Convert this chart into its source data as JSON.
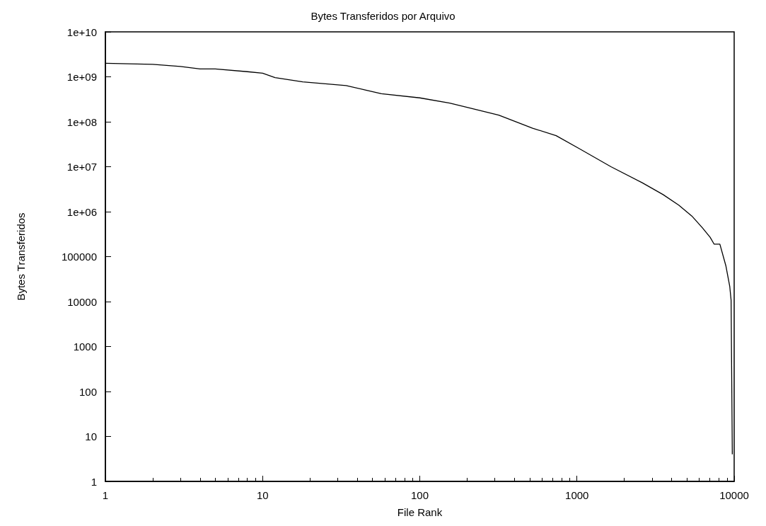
{
  "chart_data": {
    "type": "line",
    "title": "Bytes Transferidos por Arquivo",
    "xlabel": "File Rank",
    "ylabel": "Bytes Transferidos",
    "log": "xy",
    "grid": false,
    "marker": "none",
    "line_style": "solid",
    "xlim": [
      1,
      10000
    ],
    "xticks": [
      1,
      10,
      100,
      1000,
      10000
    ],
    "ylim": [
      1,
      10000000000
    ],
    "yticks": [
      1,
      10,
      100,
      1000,
      10000,
      100000,
      {
        "value": 1000000,
        "label": "1e+06"
      },
      {
        "value": 10000000,
        "label": "1e+07"
      },
      {
        "value": 100000000,
        "label": "1e+08"
      },
      {
        "value": 1000000000,
        "label": "1e+09"
      },
      {
        "value": 10000000000,
        "label": "1e+10"
      }
    ],
    "series": [
      {
        "color": "#000000",
        "x": [
          1,
          2,
          3,
          4,
          5,
          8,
          10,
          12,
          18,
          34,
          45,
          57,
          100,
          155,
          200,
          318,
          522,
          737,
          1040,
          1645,
          2600,
          3530,
          4440,
          5380,
          6270,
          7030,
          7450,
          8110,
          8850,
          9370,
          9560,
          9730
        ],
        "values": [
          2000000000,
          1900000000,
          1700000000,
          1500000000,
          1500000000,
          1300000000,
          1200000000,
          960000000,
          770000000,
          640000000,
          510000000,
          420000000,
          340000000,
          260000000,
          210000000,
          140000000,
          72000000,
          49000000,
          25000000,
          10000000,
          4400000,
          2400000,
          1400000,
          800000,
          440000,
          270000,
          190000,
          190000,
          63000,
          22000,
          10700,
          4
        ]
      }
    ]
  }
}
